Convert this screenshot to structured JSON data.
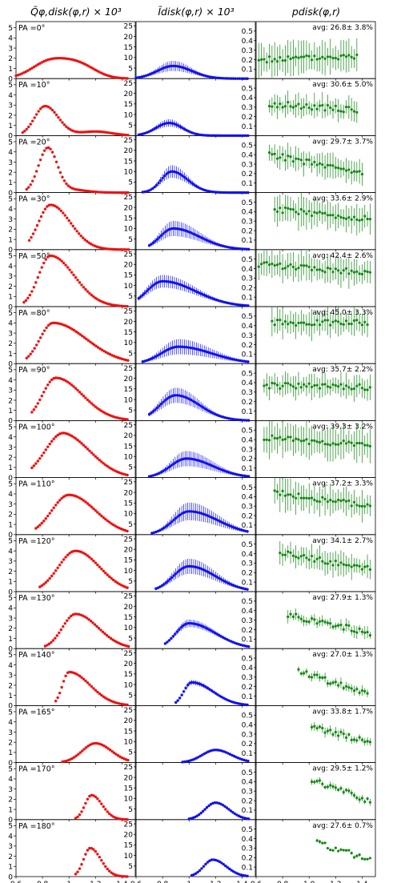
{
  "columns": [
    {
      "key": "q",
      "title": "Q̃φ,disk(φ,r) × 10³",
      "color": "#ee1111",
      "yticks": [
        "0",
        "1",
        "2",
        "3",
        "4",
        "5"
      ],
      "ylim": [
        0,
        5.6
      ]
    },
    {
      "key": "i",
      "title": "Ĩdisk(φ,r) × 10³",
      "color": "#1111ee",
      "yticks": [
        "5",
        "10",
        "15",
        "20",
        "25"
      ],
      "ylim": [
        0,
        27
      ]
    },
    {
      "key": "p",
      "title": "pdisk(φ,r)",
      "color": "#118811",
      "yticks": [
        "0.1",
        "0.2",
        "0.3",
        "0.4",
        "0.5"
      ],
      "ylim": [
        0,
        0.6
      ]
    }
  ],
  "xticks": {
    "col1": [
      "0.6",
      "0.8",
      "1",
      "1.2",
      "1.4"
    ],
    "col2": [
      "0.6",
      "0.8",
      "1",
      "1.2",
      "1.4"
    ],
    "col3": [
      "0.6",
      "0.8",
      "1.0",
      "1.2",
      "1.4"
    ]
  },
  "xlim": [
    0.6,
    1.5
  ],
  "chart_data": [
    {
      "type": "scatter",
      "title": "Q̃φ,disk(φ,r) × 10³",
      "series": "Q_phi_disk",
      "panels": [
        {
          "pa": "PA =0°",
          "values": {
            "r_start": 0.6,
            "r_end": 1.45,
            "peak_r": 0.87,
            "peak": 1.8,
            "tail_sigma": 0.16,
            "rise_sigma": 0.14,
            "bump_r": 1.1,
            "bump": 0.9
          }
        },
        {
          "pa": "PA =10°",
          "values": {
            "r_start": 0.65,
            "r_end": 1.45,
            "peak_r": 0.82,
            "peak": 2.9,
            "tail_sigma": 0.1,
            "rise_sigma": 0.08,
            "bump_r": 1.2,
            "bump": 0.4
          }
        },
        {
          "pa": "PA =20°",
          "values": {
            "r_start": 0.68,
            "r_end": 1.45,
            "peak_r": 0.84,
            "peak": 4.3,
            "tail_sigma": 0.07,
            "rise_sigma": 0.07,
            "bump_r": 1.0,
            "bump": 0.3
          }
        },
        {
          "pa": "PA =30°",
          "values": {
            "r_start": 0.7,
            "r_end": 1.45,
            "peak_r": 0.86,
            "peak": 4.4,
            "tail_sigma": 0.15,
            "rise_sigma": 0.09,
            "bump_r": 1.0,
            "bump": 0
          }
        },
        {
          "pa": "PA =50°",
          "values": {
            "r_start": 0.66,
            "r_end": 1.45,
            "peak_r": 0.86,
            "peak": 5.0,
            "tail_sigma": 0.18,
            "rise_sigma": 0.09,
            "bump_r": 1.0,
            "bump": 0
          }
        },
        {
          "pa": "PA =80°",
          "values": {
            "r_start": 0.68,
            "r_end": 1.45,
            "peak_r": 0.88,
            "peak": 4.0,
            "tail_sigma": 0.25,
            "rise_sigma": 0.1,
            "bump_r": 1.1,
            "bump": 0
          }
        },
        {
          "pa": "PA =90°",
          "values": {
            "r_start": 0.72,
            "r_end": 1.45,
            "peak_r": 0.9,
            "peak": 4.2,
            "tail_sigma": 0.2,
            "rise_sigma": 0.1,
            "bump_r": 1.1,
            "bump": 0
          }
        },
        {
          "pa": "PA =100°",
          "values": {
            "r_start": 0.72,
            "r_end": 1.45,
            "peak_r": 0.97,
            "peak": 4.0,
            "tail_sigma": 0.2,
            "rise_sigma": 0.13,
            "bump_r": 0.85,
            "bump": 0.6
          }
        },
        {
          "pa": "PA =110°",
          "values": {
            "r_start": 0.75,
            "r_end": 1.45,
            "peak_r": 1.0,
            "peak": 3.9,
            "tail_sigma": 0.2,
            "rise_sigma": 0.13,
            "bump_r": 1.0,
            "bump": 0
          }
        },
        {
          "pa": "PA =120°",
          "values": {
            "r_start": 0.78,
            "r_end": 1.45,
            "peak_r": 1.05,
            "peak": 4.0,
            "tail_sigma": 0.18,
            "rise_sigma": 0.13,
            "bump_r": 1.0,
            "bump": 0
          }
        },
        {
          "pa": "PA =130°",
          "values": {
            "r_start": 0.82,
            "r_end": 1.45,
            "peak_r": 1.05,
            "peak": 3.4,
            "tail_sigma": 0.17,
            "rise_sigma": 0.1,
            "bump_r": 1.0,
            "bump": 0
          }
        },
        {
          "pa": "PA =140°",
          "values": {
            "r_start": 0.9,
            "r_end": 1.45,
            "peak_r": 1.0,
            "peak": 3.3,
            "tail_sigma": 0.16,
            "rise_sigma": 0.05,
            "bump_r": 1.0,
            "bump": 0
          }
        },
        {
          "pa": "PA =165°",
          "values": {
            "r_start": 0.95,
            "r_end": 1.45,
            "peak_r": 1.2,
            "peak": 1.9,
            "tail_sigma": 0.12,
            "rise_sigma": 0.1,
            "bump_r": 1.0,
            "bump": 0
          }
        },
        {
          "pa": "PA =170°",
          "values": {
            "r_start": 1.05,
            "r_end": 1.45,
            "peak_r": 1.17,
            "peak": 2.4,
            "tail_sigma": 0.08,
            "rise_sigma": 0.05,
            "bump_r": 1.0,
            "bump": 0
          }
        },
        {
          "pa": "PA =180°",
          "values": {
            "r_start": 1.05,
            "r_end": 1.45,
            "peak_r": 1.16,
            "peak": 2.8,
            "tail_sigma": 0.08,
            "rise_sigma": 0.05,
            "bump_r": 1.0,
            "bump": 0
          }
        }
      ]
    },
    {
      "type": "scatter",
      "title": "Ĩdisk(φ,r) × 10³",
      "series": "I_disk",
      "panels": [
        {
          "values": {
            "r_start": 0.6,
            "r_end": 1.45,
            "peak_r": 0.88,
            "peak": 6,
            "tail_sigma": 0.14,
            "rise_sigma": 0.12,
            "err": 4
          }
        },
        {
          "values": {
            "r_start": 0.62,
            "r_end": 1.45,
            "peak_r": 0.85,
            "peak": 6,
            "tail_sigma": 0.1,
            "rise_sigma": 0.1,
            "err": 3
          }
        },
        {
          "values": {
            "r_start": 0.65,
            "r_end": 1.45,
            "peak_r": 0.87,
            "peak": 10,
            "tail_sigma": 0.12,
            "rise_sigma": 0.08,
            "err": 5
          }
        },
        {
          "values": {
            "r_start": 0.7,
            "r_end": 1.45,
            "peak_r": 0.88,
            "peak": 10,
            "tail_sigma": 0.2,
            "rise_sigma": 0.1,
            "err": 6
          }
        },
        {
          "values": {
            "r_start": 0.62,
            "r_end": 1.45,
            "peak_r": 0.8,
            "peak": 12,
            "tail_sigma": 0.25,
            "rise_sigma": 0.12,
            "err": 5
          }
        },
        {
          "values": {
            "r_start": 0.65,
            "r_end": 1.45,
            "peak_r": 0.92,
            "peak": 8,
            "tail_sigma": 0.25,
            "rise_sigma": 0.13,
            "err": 6
          }
        },
        {
          "values": {
            "r_start": 0.7,
            "r_end": 1.45,
            "peak_r": 0.9,
            "peak": 12,
            "tail_sigma": 0.18,
            "rise_sigma": 0.12,
            "err": 6
          }
        },
        {
          "values": {
            "r_start": 0.7,
            "r_end": 1.45,
            "peak_r": 0.98,
            "peak": 9,
            "tail_sigma": 0.2,
            "rise_sigma": 0.12,
            "err": 6
          }
        },
        {
          "values": {
            "r_start": 0.72,
            "r_end": 1.45,
            "peak_r": 1.0,
            "peak": 11,
            "tail_sigma": 0.22,
            "rise_sigma": 0.12,
            "err": 7
          }
        },
        {
          "values": {
            "r_start": 0.75,
            "r_end": 1.45,
            "peak_r": 1.0,
            "peak": 12,
            "tail_sigma": 0.2,
            "rise_sigma": 0.12,
            "err": 6
          }
        },
        {
          "values": {
            "r_start": 0.82,
            "r_end": 1.45,
            "peak_r": 1.0,
            "peak": 12,
            "tail_sigma": 0.2,
            "rise_sigma": 0.1,
            "err": 3
          }
        },
        {
          "values": {
            "r_start": 0.9,
            "r_end": 1.45,
            "peak_r": 1.02,
            "peak": 11,
            "tail_sigma": 0.16,
            "rise_sigma": 0.06,
            "err": 2
          }
        },
        {
          "values": {
            "r_start": 0.95,
            "r_end": 1.45,
            "peak_r": 1.2,
            "peak": 6,
            "tail_sigma": 0.12,
            "rise_sigma": 0.1,
            "err": 0
          }
        },
        {
          "values": {
            "r_start": 1.0,
            "r_end": 1.45,
            "peak_r": 1.2,
            "peak": 8,
            "tail_sigma": 0.1,
            "rise_sigma": 0.08,
            "err": 0
          }
        },
        {
          "values": {
            "r_start": 1.02,
            "r_end": 1.45,
            "peak_r": 1.18,
            "peak": 8,
            "tail_sigma": 0.1,
            "rise_sigma": 0.07,
            "err": 0
          }
        }
      ]
    },
    {
      "type": "scatter",
      "title": "pdisk(φ,r)",
      "series": "p_disk",
      "panels": [
        {
          "avg": "avg: 26.8± 3.8%",
          "values": {
            "r_start": 0.62,
            "r_end": 1.38,
            "level": 0.22,
            "slope": 0.05,
            "err": 0.14
          }
        },
        {
          "avg": "avg: 30.6± 5.0%",
          "values": {
            "r_start": 0.7,
            "r_end": 1.38,
            "level": 0.3,
            "slope": -0.1,
            "err": 0.1
          }
        },
        {
          "avg": "avg: 29.7± 3.7%",
          "values": {
            "r_start": 0.7,
            "r_end": 1.42,
            "level": 0.3,
            "slope": -0.3,
            "err": 0.1
          }
        },
        {
          "avg": "avg: 33.6± 2.9%",
          "values": {
            "r_start": 0.74,
            "r_end": 1.48,
            "level": 0.38,
            "slope": -0.15,
            "err": 0.13
          }
        },
        {
          "avg": "avg: 42.4± 2.6%",
          "values": {
            "r_start": 0.62,
            "r_end": 1.48,
            "level": 0.4,
            "slope": -0.1,
            "err": 0.12
          }
        },
        {
          "avg": "avg: 45.0± 3.3%",
          "values": {
            "r_start": 0.72,
            "r_end": 1.45,
            "level": 0.43,
            "slope": 0,
            "err": 0.12
          }
        },
        {
          "avg": "avg: 35.7± 2.2%",
          "values": {
            "r_start": 0.66,
            "r_end": 1.48,
            "level": 0.36,
            "slope": -0.02,
            "err": 0.1
          }
        },
        {
          "avg": "avg: 39.3± 3.2%",
          "values": {
            "r_start": 0.66,
            "r_end": 1.48,
            "level": 0.38,
            "slope": -0.1,
            "err": 0.15
          }
        },
        {
          "avg": "avg: 37.2± 3.3%",
          "values": {
            "r_start": 0.74,
            "r_end": 1.48,
            "level": 0.38,
            "slope": -0.2,
            "err": 0.13
          }
        },
        {
          "avg": "avg: 34.1± 2.7%",
          "values": {
            "r_start": 0.78,
            "r_end": 1.48,
            "level": 0.34,
            "slope": -0.25,
            "err": 0.1
          }
        },
        {
          "avg": "avg: 27.9± 1.3%",
          "values": {
            "r_start": 0.84,
            "r_end": 1.48,
            "level": 0.29,
            "slope": -0.3,
            "err": 0.05
          }
        },
        {
          "avg": "avg: 27.0± 1.3%",
          "values": {
            "r_start": 0.92,
            "r_end": 1.46,
            "level": 0.3,
            "slope": -0.45,
            "err": 0.04
          }
        },
        {
          "avg": "avg: 33.8± 1.7%",
          "values": {
            "r_start": 1.02,
            "r_end": 1.48,
            "level": 0.36,
            "slope": -0.35,
            "err": 0.04
          }
        },
        {
          "avg": "avg: 29.5± 1.2%",
          "values": {
            "r_start": 1.02,
            "r_end": 1.48,
            "level": 0.4,
            "slope": -0.5,
            "err": 0.03
          }
        },
        {
          "avg": "avg: 27.6± 0.7%",
          "values": {
            "r_start": 1.06,
            "r_end": 1.48,
            "level": 0.36,
            "slope": -0.45,
            "err": 0.015
          }
        }
      ]
    }
  ]
}
